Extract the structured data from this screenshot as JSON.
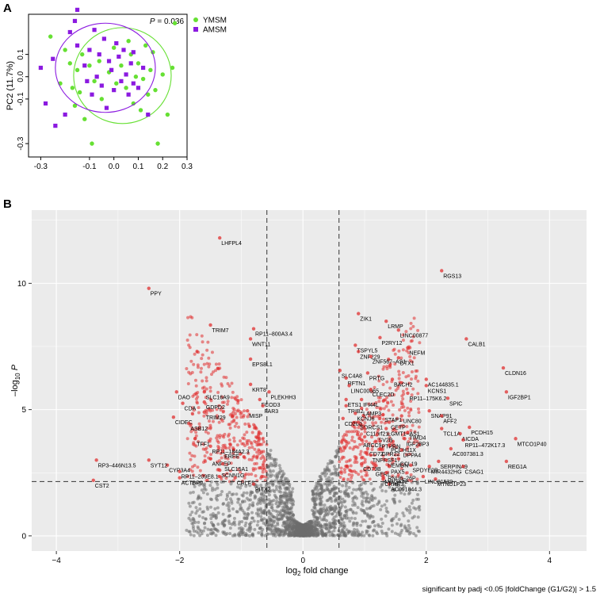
{
  "chart_data": [
    {
      "type": "scatter",
      "panel": "A",
      "xlabel": "",
      "ylabel": "PC2 (11.7%)",
      "xlim": [
        -0.35,
        0.3
      ],
      "ylim": [
        -0.36,
        0.28
      ],
      "xticks": [
        -0.3,
        -0.1,
        0.0,
        0.1,
        0.2,
        0.3
      ],
      "xtick_labels": [
        "-0.3",
        "-0.1",
        "0.0",
        "0.1",
        "0.2",
        "0.3"
      ],
      "yticks": [
        -0.3,
        -0.1,
        0.0,
        0.1
      ],
      "ytick_labels": [
        "-0.3",
        "-0.1",
        "0.0",
        "0.1"
      ],
      "annotation": "P = 0.036",
      "annotation_prefix": "P",
      "annotation_value": " = 0.036",
      "series": [
        {
          "name": "YMSM",
          "color": "#66e033",
          "marker": "circle",
          "ellipse": {
            "cx": 0.035,
            "cy": 0.005,
            "rx": 0.2,
            "ry": 0.215
          },
          "points": [
            [
              -0.26,
              0.18
            ],
            [
              -0.2,
              0.12
            ],
            [
              -0.18,
              0.06
            ],
            [
              -0.13,
              0.1
            ],
            [
              -0.15,
              0.03
            ],
            [
              -0.17,
              -0.05
            ],
            [
              -0.14,
              -0.07
            ],
            [
              -0.16,
              -0.13
            ],
            [
              -0.22,
              -0.03
            ],
            [
              -0.1,
              0.05
            ],
            [
              -0.08,
              -0.02
            ],
            [
              -0.06,
              0.07
            ],
            [
              -0.05,
              -0.1
            ],
            [
              -0.02,
              0.02
            ],
            [
              0.0,
              0.13
            ],
            [
              0.01,
              -0.03
            ],
            [
              0.03,
              0.05
            ],
            [
              0.05,
              -0.05
            ],
            [
              0.07,
              0.1
            ],
            [
              0.08,
              -0.12
            ],
            [
              0.09,
              0.0
            ],
            [
              0.1,
              0.06
            ],
            [
              0.12,
              -0.01
            ],
            [
              0.13,
              0.14
            ],
            [
              0.14,
              -0.08
            ],
            [
              0.15,
              0.03
            ],
            [
              0.17,
              -0.06
            ],
            [
              0.18,
              -0.3
            ],
            [
              0.2,
              0.01
            ],
            [
              0.22,
              -0.17
            ],
            [
              0.25,
              0.24
            ],
            [
              0.24,
              0.04
            ],
            [
              -0.12,
              -0.19
            ],
            [
              -0.09,
              -0.3
            ],
            [
              0.06,
              0.16
            ],
            [
              0.11,
              -0.15
            ],
            [
              0.16,
              0.11
            ]
          ]
        },
        {
          "name": "AMSM",
          "color": "#8b1ae0",
          "marker": "square",
          "ellipse": {
            "cx": -0.035,
            "cy": 0.04,
            "rx": 0.205,
            "ry": 0.2
          },
          "points": [
            [
              -0.3,
              0.04
            ],
            [
              -0.28,
              -0.12
            ],
            [
              -0.24,
              -0.22
            ],
            [
              -0.2,
              -0.17
            ],
            [
              -0.18,
              0.2
            ],
            [
              -0.16,
              0.25
            ],
            [
              -0.15,
              0.14
            ],
            [
              -0.12,
              0.05
            ],
            [
              -0.11,
              -0.02
            ],
            [
              -0.1,
              0.12
            ],
            [
              -0.09,
              -0.08
            ],
            [
              -0.08,
              0.21
            ],
            [
              -0.07,
              0.0
            ],
            [
              -0.06,
              0.1
            ],
            [
              -0.05,
              -0.04
            ],
            [
              -0.04,
              0.17
            ],
            [
              -0.03,
              -0.14
            ],
            [
              -0.02,
              0.07
            ],
            [
              -0.01,
              0.03
            ],
            [
              0.0,
              -0.06
            ],
            [
              0.01,
              0.15
            ],
            [
              0.02,
              0.09
            ],
            [
              0.03,
              -0.02
            ],
            [
              0.04,
              0.12
            ],
            [
              0.05,
              0.01
            ],
            [
              0.06,
              -0.08
            ],
            [
              0.07,
              0.06
            ],
            [
              0.08,
              0.11
            ],
            [
              0.1,
              -0.05
            ],
            [
              0.12,
              0.04
            ],
            [
              0.14,
              -0.17
            ],
            [
              -0.15,
              0.3
            ],
            [
              -0.25,
              0.08
            ],
            [
              0.08,
              -0.03
            ]
          ]
        }
      ]
    },
    {
      "type": "scatter",
      "panel": "B",
      "title": "",
      "xlabel": "log2 fold change",
      "xlabel_main": "log",
      "xlabel_sub": "2",
      "xlabel_rest": " fold change",
      "ylabel": "–log10 P",
      "ylabel_main": "–log",
      "ylabel_sub": "10",
      "ylabel_p": " P",
      "xlim": [
        -4.4,
        4.6
      ],
      "ylim": [
        -0.6,
        12.9
      ],
      "xticks": [
        -4,
        -2,
        0,
        2,
        4
      ],
      "xtick_labels": [
        "−4",
        "−2",
        "0",
        "2",
        "4"
      ],
      "yticks": [
        0,
        5,
        10
      ],
      "ytick_labels": [
        "0",
        "5",
        "10"
      ],
      "fc_threshold": 0.585,
      "p_threshold": 2.15,
      "caption": "significant by padj <0.05 |foldChange (G1/G2)| > 1.5",
      "colors": {
        "nonsig": "#6e6e6e",
        "sig": "#e03030",
        "panel_bg": "#ebebeb",
        "grid": "#ffffff"
      },
      "labeled_genes": [
        {
          "name": "LHFPL4",
          "x": -1.35,
          "y": 11.8
        },
        {
          "name": "PPY",
          "x": -2.5,
          "y": 9.8
        },
        {
          "name": "RP11–800A3.4",
          "x": -0.8,
          "y": 8.2
        },
        {
          "name": "TRIM7",
          "x": -1.5,
          "y": 8.35
        },
        {
          "name": "WNT11",
          "x": -0.85,
          "y": 7.8
        },
        {
          "name": "EPS8L1",
          "x": -0.85,
          "y": 7.0
        },
        {
          "name": "KRT8",
          "x": -0.85,
          "y": 6.0
        },
        {
          "name": "PLEKHH3",
          "x": -0.55,
          "y": 5.7
        },
        {
          "name": "FCOD3",
          "x": -0.7,
          "y": 5.4
        },
        {
          "name": "GDPD2",
          "x": -1.6,
          "y": 5.3
        },
        {
          "name": "SLC16A9",
          "x": -1.6,
          "y": 5.7
        },
        {
          "name": "TRIM29",
          "x": -1.6,
          "y": 4.9
        },
        {
          "name": "FAR3",
          "x": -0.65,
          "y": 5.15
        },
        {
          "name": "MISP",
          "x": -0.9,
          "y": 4.95
        },
        {
          "name": "DAO",
          "x": -2.05,
          "y": 5.7
        },
        {
          "name": "CDA",
          "x": -1.95,
          "y": 5.25
        },
        {
          "name": "CIDEC",
          "x": -2.1,
          "y": 4.7
        },
        {
          "name": "ASB12",
          "x": -1.85,
          "y": 4.45
        },
        {
          "name": "TFF1",
          "x": -1.75,
          "y": 3.85
        },
        {
          "name": "RP11–184A2.3",
          "x": -1.5,
          "y": 3.55
        },
        {
          "name": "ERFE",
          "x": -1.3,
          "y": 3.35
        },
        {
          "name": "ANPEP",
          "x": -1.5,
          "y": 3.05
        },
        {
          "name": "CYP3A4",
          "x": -2.2,
          "y": 2.8
        },
        {
          "name": "SYT12",
          "x": -2.5,
          "y": 3.0
        },
        {
          "name": "RP3–446N13.5",
          "x": -3.35,
          "y": 3.0
        },
        {
          "name": "RP11–209E8.1",
          "x": -2.0,
          "y": 2.55
        },
        {
          "name": "ACTBP9",
          "x": -2.0,
          "y": 2.3
        },
        {
          "name": "CST2",
          "x": -3.4,
          "y": 2.2
        },
        {
          "name": "SCNN1G",
          "x": -1.35,
          "y": 2.6
        },
        {
          "name": "SLC15A1",
          "x": -1.3,
          "y": 2.85
        },
        {
          "name": "CRLF1",
          "x": -1.1,
          "y": 2.3
        },
        {
          "name": "PITX2",
          "x": -0.8,
          "y": 2.05
        },
        {
          "name": "ZIK1",
          "x": 0.9,
          "y": 8.8
        },
        {
          "name": "LRMP",
          "x": 1.35,
          "y": 8.5
        },
        {
          "name": "LINC00877",
          "x": 1.55,
          "y": 8.15
        },
        {
          "name": "P2RY12",
          "x": 1.25,
          "y": 7.85
        },
        {
          "name": "TSPYL5",
          "x": 0.85,
          "y": 7.55
        },
        {
          "name": "ZNF229",
          "x": 0.9,
          "y": 7.3
        },
        {
          "name": "ZNF567–AS1",
          "x": 1.1,
          "y": 7.1
        },
        {
          "name": "NEFM",
          "x": 1.7,
          "y": 7.45
        },
        {
          "name": "DTX1",
          "x": 1.55,
          "y": 7.05
        },
        {
          "name": "SLC4A8",
          "x": 0.6,
          "y": 6.55
        },
        {
          "name": "PRTG",
          "x": 1.05,
          "y": 6.45
        },
        {
          "name": "RFTN1",
          "x": 0.7,
          "y": 6.25
        },
        {
          "name": "BACH2",
          "x": 1.45,
          "y": 6.2
        },
        {
          "name": "LINC00865",
          "x": 0.75,
          "y": 5.95
        },
        {
          "name": "CLEC2D",
          "x": 1.1,
          "y": 5.8
        },
        {
          "name": "ETS1",
          "x": 0.7,
          "y": 5.4
        },
        {
          "name": "IFI44L",
          "x": 0.95,
          "y": 5.4
        },
        {
          "name": "TRIB2",
          "x": 0.7,
          "y": 5.15
        },
        {
          "name": "LAMP3",
          "x": 0.95,
          "y": 5.05
        },
        {
          "name": "KCNJ6",
          "x": 0.85,
          "y": 4.85
        },
        {
          "name": "STAP1",
          "x": 1.3,
          "y": 4.8
        },
        {
          "name": "UNC80",
          "x": 1.6,
          "y": 4.75
        },
        {
          "name": "CD200",
          "x": 0.65,
          "y": 4.65
        },
        {
          "name": "SORCS1",
          "x": 0.9,
          "y": 4.5
        },
        {
          "name": "CETP",
          "x": 1.4,
          "y": 4.5
        },
        {
          "name": "LGMT1–AS1",
          "x": 1.35,
          "y": 4.25
        },
        {
          "name": "C11orf21",
          "x": 1.0,
          "y": 4.25
        },
        {
          "name": "SV2B",
          "x": 1.2,
          "y": 4.0
        },
        {
          "name": "ABCC9",
          "x": 0.95,
          "y": 3.8
        },
        {
          "name": "PTPRN",
          "x": 1.25,
          "y": 3.75
        },
        {
          "name": "TIMD4",
          "x": 1.7,
          "y": 4.1
        },
        {
          "name": "IGF2BP3",
          "x": 1.65,
          "y": 3.85
        },
        {
          "name": "PCDH11X",
          "x": 1.4,
          "y": 3.6
        },
        {
          "name": "CD72",
          "x": 1.05,
          "y": 3.45
        },
        {
          "name": "GPR22",
          "x": 1.25,
          "y": 3.45
        },
        {
          "name": "DPPA4",
          "x": 1.6,
          "y": 3.4
        },
        {
          "name": "TNFRSF17",
          "x": 1.1,
          "y": 3.2
        },
        {
          "name": "CCL19",
          "x": 1.55,
          "y": 3.05
        },
        {
          "name": "HEMGN",
          "x": 1.35,
          "y": 3.0
        },
        {
          "name": "CD79B",
          "x": 0.95,
          "y": 2.85
        },
        {
          "name": "PAX5",
          "x": 1.4,
          "y": 2.75
        },
        {
          "name": "SPDYE2B",
          "x": 1.75,
          "y": 2.8
        },
        {
          "name": "GERI",
          "x": 1.15,
          "y": 2.65
        },
        {
          "name": "RNU6–26P",
          "x": 1.35,
          "y": 2.5
        },
        {
          "name": "MOGAT2",
          "x": 1.3,
          "y": 2.35
        },
        {
          "name": "LINC01539",
          "x": 1.95,
          "y": 2.35
        },
        {
          "name": "AC091844.3",
          "x": 1.4,
          "y": 2.05
        },
        {
          "name": "CRHR3",
          "x": 1.3,
          "y": 2.25
        },
        {
          "name": "RGS13",
          "x": 2.25,
          "y": 10.5
        },
        {
          "name": "CALB1",
          "x": 2.65,
          "y": 7.8
        },
        {
          "name": "CLDN16",
          "x": 3.25,
          "y": 6.65
        },
        {
          "name": "AC144835.1",
          "x": 2.0,
          "y": 6.2
        },
        {
          "name": "KCNS1",
          "x": 2.0,
          "y": 5.95
        },
        {
          "name": "RP11–175K6.2",
          "x": 1.7,
          "y": 5.65
        },
        {
          "name": "SPIC",
          "x": 2.35,
          "y": 5.45
        },
        {
          "name": "IGF2BP1",
          "x": 3.3,
          "y": 5.7
        },
        {
          "name": "SNAP91",
          "x": 2.05,
          "y": 4.95
        },
        {
          "name": "AFF2",
          "x": 2.25,
          "y": 4.75
        },
        {
          "name": "TCL1A",
          "x": 2.25,
          "y": 4.25
        },
        {
          "name": "PCDH15",
          "x": 2.7,
          "y": 4.3
        },
        {
          "name": "AICDA",
          "x": 2.55,
          "y": 4.05
        },
        {
          "name": "RP11–472K17.3",
          "x": 2.6,
          "y": 3.8
        },
        {
          "name": "AC007381.3",
          "x": 2.4,
          "y": 3.45
        },
        {
          "name": "SERPINA9",
          "x": 2.2,
          "y": 2.95
        },
        {
          "name": "MIR4432HG",
          "x": 2.05,
          "y": 2.75
        },
        {
          "name": "CSAG1",
          "x": 2.6,
          "y": 2.75
        },
        {
          "name": "MTND1P23",
          "x": 2.15,
          "y": 2.25
        },
        {
          "name": "MTCO1P40",
          "x": 3.45,
          "y": 3.85
        },
        {
          "name": "REG1A",
          "x": 3.3,
          "y": 2.95
        }
      ]
    }
  ],
  "panel_a_label": "A",
  "panel_b_label": "B"
}
